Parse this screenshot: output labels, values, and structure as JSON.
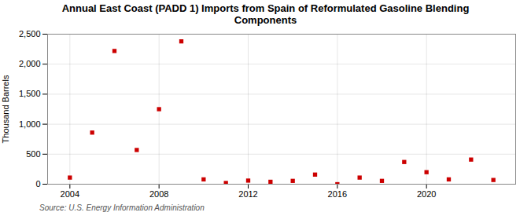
{
  "chart_data": {
    "type": "scatter",
    "title": "Annual East Coast (PADD 1) Imports from Spain of Reformulated Gasoline Blending\nComponents",
    "ylabel": "Thousand Barrels",
    "annotations": [
      "Source: U.S. Energy Information Administration"
    ],
    "x": [
      2004,
      2005,
      2006,
      2007,
      2008,
      2009,
      2010,
      2011,
      2012,
      2013,
      2014,
      2015,
      2016,
      2017,
      2018,
      2019,
      2020,
      2021,
      2022,
      2023
    ],
    "values": [
      110,
      860,
      2220,
      570,
      1250,
      2380,
      80,
      20,
      60,
      40,
      55,
      160,
      0,
      110,
      55,
      370,
      200,
      80,
      410,
      70
    ],
    "color": "#cc0000",
    "marker": "square",
    "xlim": [
      2003,
      2024
    ],
    "xticks": [
      2004,
      2008,
      2012,
      2016,
      2020
    ],
    "ylim": [
      0,
      2500
    ],
    "yticks": [
      0,
      500,
      {
        "value": 1000,
        "label": "1,000"
      },
      {
        "value": 1500,
        "label": "1,500"
      },
      {
        "value": 2000,
        "label": "2,000"
      },
      {
        "value": 2500,
        "label": "2,500"
      }
    ],
    "grid": true
  }
}
